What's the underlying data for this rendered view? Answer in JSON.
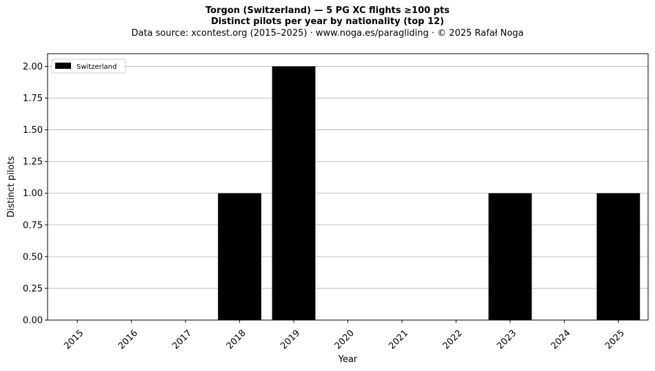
{
  "header": {
    "title_line1": "Torgon (Switzerland)  —  5 PG XC flights ≥100 pts",
    "title_line2": "Distinct pilots per year by nationality (top 12)",
    "subtitle": "Data source: xcontest.org (2015–2025)  ·  www.noga.es/paragliding  ·  © 2025 Rafał Noga"
  },
  "chart_data": {
    "type": "bar",
    "categories": [
      "2015",
      "2016",
      "2017",
      "2018",
      "2019",
      "2020",
      "2021",
      "2022",
      "2023",
      "2024",
      "2025"
    ],
    "series": [
      {
        "name": "Switzerland",
        "values": [
          0,
          0,
          0,
          1,
          2,
          0,
          0,
          0,
          1,
          0,
          1
        ],
        "color": "#000000"
      }
    ],
    "xlabel": "Year",
    "ylabel": "Distinct pilots",
    "ylim": [
      0,
      2.1
    ],
    "yticks": [
      "0.00",
      "0.25",
      "0.50",
      "0.75",
      "1.00",
      "1.25",
      "1.50",
      "1.75",
      "2.00"
    ],
    "grid": "y",
    "legend_position": "top-left"
  }
}
